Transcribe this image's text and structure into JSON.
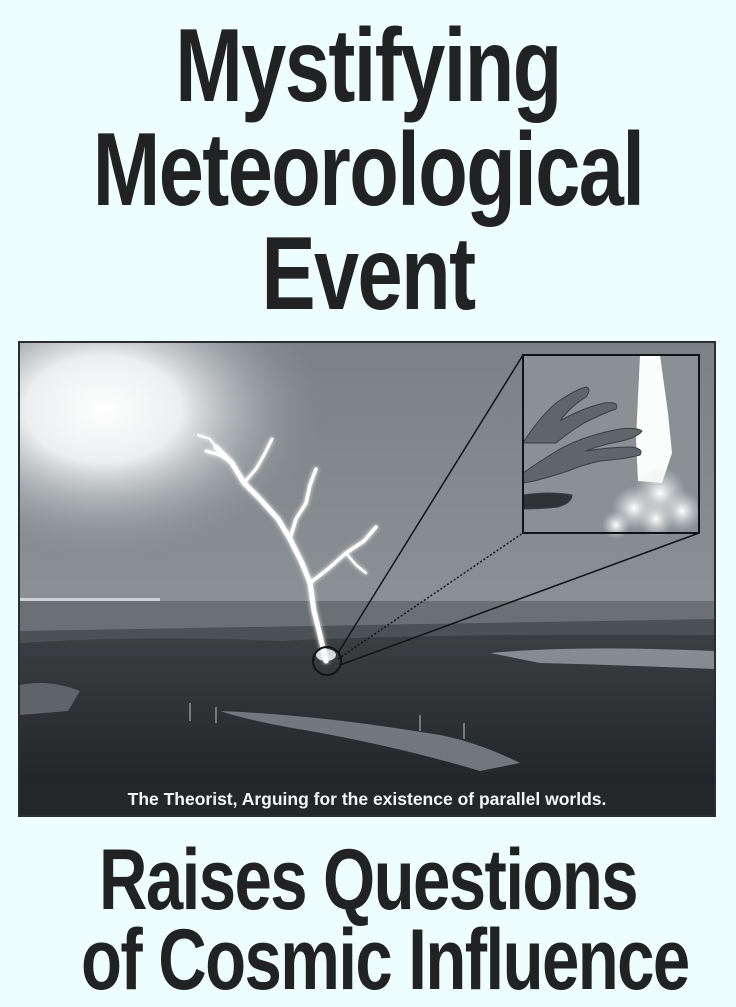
{
  "headline_top": {
    "line1": "Mystifying",
    "line2": "Meteorological",
    "line3": "Event"
  },
  "photo": {
    "caption": "The Theorist, Arguing for the existence of parallel worlds.",
    "scene": "lightning-strike-with-hand-inset"
  },
  "headline_bottom": {
    "line1": "Raises Questions",
    "line2": "of Cosmic Influence"
  },
  "colors": {
    "background": "#eefefe",
    "headline": "#202224",
    "caption_bar": "#24272a"
  }
}
